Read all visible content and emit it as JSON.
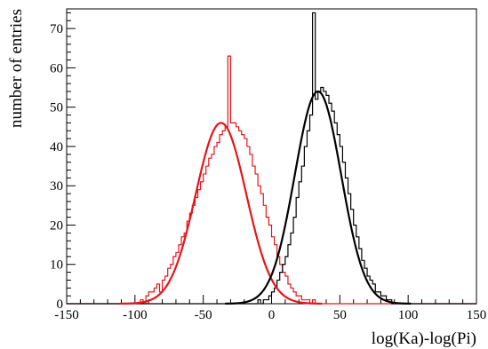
{
  "chart_data": {
    "type": "histogram",
    "xlabel": "log(Ka)-log(Pi)",
    "ylabel": "number of entries",
    "xlim": [
      -150,
      150
    ],
    "ylim": [
      0,
      75
    ],
    "x_ticks": [
      -150,
      -100,
      -50,
      0,
      50,
      100,
      150
    ],
    "y_ticks": [
      0,
      10,
      20,
      30,
      40,
      50,
      60,
      70
    ],
    "bin_width": 2,
    "grid": false,
    "legend": "none",
    "series": [
      {
        "color": "#e8141a",
        "style": "step",
        "bin_start": -96,
        "counts": [
          1,
          0,
          2,
          3,
          3,
          4,
          5,
          3,
          6,
          7,
          9,
          10,
          12,
          13,
          15,
          17,
          18,
          21,
          23,
          25,
          27,
          29,
          31,
          33,
          35,
          37,
          38,
          40,
          41,
          43,
          44,
          45,
          63,
          46,
          46,
          45,
          44,
          43,
          42,
          40,
          38,
          35,
          33,
          30,
          28,
          25,
          22,
          20,
          17,
          15,
          12,
          10,
          8,
          7,
          5,
          4,
          3,
          2,
          2,
          1,
          1,
          1,
          0,
          1
        ]
      },
      {
        "color": "#000000",
        "style": "step",
        "bin_start": -10,
        "counts": [
          1,
          0,
          1,
          1,
          2,
          3,
          4,
          6,
          8,
          10,
          12,
          15,
          18,
          22,
          27,
          31,
          35,
          40,
          44,
          48,
          74,
          52,
          54,
          55,
          54,
          53,
          51,
          49,
          46,
          43,
          40,
          36,
          32,
          28,
          24,
          20,
          17,
          14,
          11,
          9,
          7,
          6,
          5,
          3,
          3,
          2,
          2,
          1,
          1
        ]
      },
      {
        "color": "#e8141a",
        "style": "fit",
        "amplitude": 46,
        "mean": -37,
        "sigma": 18.5
      },
      {
        "color": "#000000",
        "style": "fit",
        "amplitude": 54,
        "mean": 34,
        "sigma": 17
      }
    ]
  }
}
